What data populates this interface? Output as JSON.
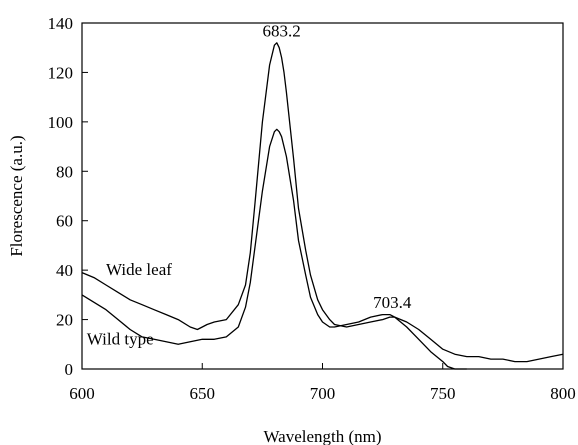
{
  "chart_data": {
    "type": "line",
    "title": "",
    "xlabel": "Wavelength (nm)",
    "ylabel": "Florescence (a.u.)",
    "xlim": [
      600,
      800
    ],
    "ylim": [
      0,
      140
    ],
    "xticks": [
      600,
      650,
      700,
      750,
      800
    ],
    "yticks": [
      0,
      20,
      40,
      60,
      80,
      100,
      120,
      140
    ],
    "grid": false,
    "legend": "none",
    "series": [
      {
        "name": "Wide leaf",
        "color": "#000000",
        "x": [
          600,
          605,
          610,
          615,
          620,
          625,
          630,
          635,
          640,
          645,
          648,
          650,
          652,
          655,
          660,
          665,
          668,
          670,
          672,
          675,
          678,
          680,
          681,
          682,
          683,
          684,
          685,
          688,
          690,
          693,
          695,
          698,
          700,
          703,
          705,
          710,
          715,
          720,
          725,
          728,
          730,
          735,
          740,
          745,
          750,
          755,
          760,
          765,
          770,
          775,
          780,
          785,
          790,
          795,
          800
        ],
        "y": [
          39,
          37,
          34,
          31,
          28,
          26,
          24,
          22,
          20,
          17,
          16,
          17,
          18,
          19,
          20,
          26,
          34,
          47,
          68,
          100,
          123,
          131,
          132,
          130,
          126,
          120,
          112,
          85,
          65,
          48,
          38,
          28,
          24,
          20,
          18,
          17,
          18,
          19,
          20,
          21,
          21,
          19,
          16,
          12,
          8,
          6,
          5,
          5,
          4,
          4,
          3,
          3,
          4,
          5,
          6
        ]
      },
      {
        "name": "Wild type",
        "color": "#000000",
        "x": [
          600,
          605,
          610,
          615,
          620,
          625,
          630,
          635,
          640,
          645,
          650,
          655,
          660,
          665,
          668,
          670,
          672,
          675,
          678,
          680,
          681,
          682,
          683,
          685,
          688,
          690,
          693,
          695,
          698,
          700,
          703,
          705,
          710,
          715,
          720,
          725,
          728,
          730,
          735,
          740,
          745,
          750,
          752,
          755,
          760
        ],
        "y": [
          30,
          27,
          24,
          20,
          16,
          13,
          12,
          11,
          10,
          11,
          12,
          12,
          13,
          17,
          25,
          35,
          50,
          72,
          90,
          96,
          97,
          96,
          94,
          86,
          68,
          52,
          38,
          29,
          22,
          19,
          17,
          17,
          18,
          19,
          21,
          22,
          22,
          21,
          17,
          12,
          7,
          3,
          1,
          0,
          0
        ]
      }
    ],
    "annotations": [
      {
        "text": "683.2",
        "x": 683,
        "y": 133
      },
      {
        "text": "703.4",
        "x": 729,
        "y": 23
      }
    ]
  }
}
